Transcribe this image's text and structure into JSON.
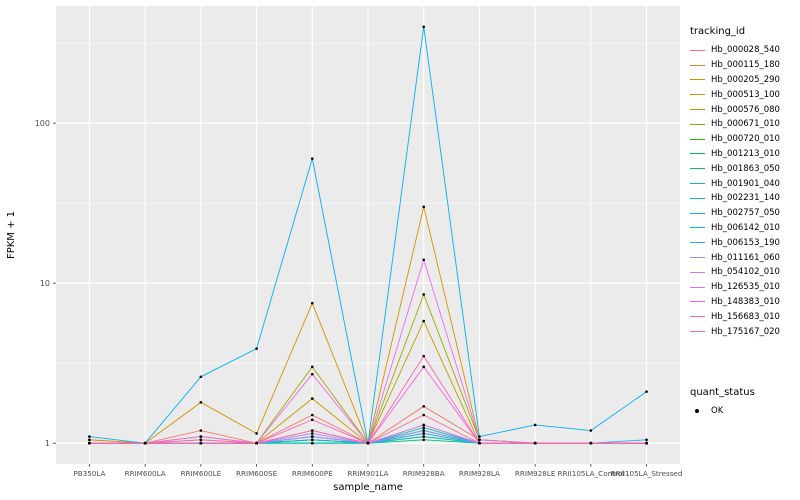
{
  "figure": {
    "background": "#FFFFFF",
    "panel_background": "#EBEBEB",
    "gridline_color": "#FFFFFF",
    "tick_color": "#333333",
    "tick_label_color": "#4D4D4D",
    "title_color": "#000000"
  },
  "axes": {
    "x": {
      "title": "sample_name"
    },
    "y": {
      "title": "FPKM + 1",
      "ticks": [
        "1",
        "10",
        "100"
      ],
      "tick_values": [
        1,
        10,
        100
      ],
      "minor_values": [
        3.162,
        31.62,
        316.2
      ],
      "scale": "log10"
    }
  },
  "legend": {
    "tracking_title": "tracking_id",
    "quant_title": "quant_status",
    "quant_items": [
      {
        "label": "OK",
        "color": "#000000"
      }
    ]
  },
  "chart_data": {
    "type": "line",
    "title": "",
    "xlabel": "sample_name",
    "ylabel": "FPKM + 1",
    "y_scale": "log10",
    "ylim_log10": [
      -0.13,
      2.732
    ],
    "grid": true,
    "legend_position": "right",
    "point_color": "#000000",
    "categories": [
      "PB350LA",
      "RRIM600LA",
      "RRIM600LE",
      "RRIM600SE",
      "RRIM600PE",
      "RRIM901LA",
      "RRIM928BA",
      "RRIM928LA",
      "RRIM928LE",
      "RRII105LA_Control",
      "RRII105LA_Stressed"
    ],
    "series": [
      {
        "name": "Hb_000028_540",
        "color": "#F8766D",
        "values": [
          1.05,
          1.0,
          1.2,
          1.0,
          1.5,
          1.0,
          1.7,
          1.05,
          1.0,
          1.0,
          1.0
        ]
      },
      {
        "name": "Hb_000115_180",
        "color": "#EA8331",
        "values": [
          1.0,
          1.0,
          1.0,
          1.0,
          1.1,
          1.0,
          1.3,
          1.0,
          1.0,
          1.0,
          1.0
        ]
      },
      {
        "name": "Hb_000205_290",
        "color": "#D89000",
        "values": [
          1.05,
          1.0,
          1.8,
          1.15,
          7.5,
          1.0,
          30,
          1.05,
          1.0,
          1.0,
          1.0
        ]
      },
      {
        "name": "Hb_000513_100",
        "color": "#C09B00",
        "values": [
          1.0,
          1.0,
          1.1,
          1.0,
          1.9,
          1.0,
          5.8,
          1.0,
          1.0,
          1.0,
          1.0
        ]
      },
      {
        "name": "Hb_000576_080",
        "color": "#A3A500",
        "values": [
          1.0,
          1.0,
          1.05,
          1.0,
          3.0,
          1.0,
          8.5,
          1.05,
          1.0,
          1.0,
          1.0
        ]
      },
      {
        "name": "Hb_000671_010",
        "color": "#7CAE00",
        "values": [
          1.0,
          1.0,
          1.0,
          1.0,
          1.05,
          1.0,
          1.2,
          1.0,
          1.0,
          1.0,
          1.0
        ]
      },
      {
        "name": "Hb_000720_010",
        "color": "#39B600",
        "values": [
          1.0,
          1.0,
          1.0,
          1.0,
          1.0,
          1.0,
          1.15,
          1.0,
          1.0,
          1.0,
          1.0
        ]
      },
      {
        "name": "Hb_001213_010",
        "color": "#00BB4E",
        "values": [
          1.0,
          1.0,
          1.0,
          1.0,
          1.05,
          1.0,
          1.1,
          1.0,
          1.0,
          1.0,
          1.0
        ]
      },
      {
        "name": "Hb_001863_050",
        "color": "#00BF7D",
        "values": [
          1.0,
          1.0,
          1.0,
          1.0,
          1.0,
          1.0,
          1.05,
          1.0,
          1.0,
          1.0,
          1.0
        ]
      },
      {
        "name": "Hb_001901_040",
        "color": "#00C1A3",
        "values": [
          1.0,
          1.0,
          1.0,
          1.0,
          1.1,
          1.0,
          1.25,
          1.0,
          1.0,
          1.0,
          1.0
        ]
      },
      {
        "name": "Hb_002231_140",
        "color": "#00BFC4",
        "values": [
          1.0,
          1.0,
          1.0,
          1.0,
          1.0,
          1.0,
          1.1,
          1.0,
          1.0,
          1.0,
          1.0
        ]
      },
      {
        "name": "Hb_002757_050",
        "color": "#00BAE0",
        "values": [
          1.0,
          1.0,
          1.0,
          1.0,
          1.05,
          1.0,
          1.2,
          1.0,
          1.0,
          1.0,
          1.0
        ]
      },
      {
        "name": "Hb_006142_010",
        "color": "#00B0F6",
        "values": [
          1.1,
          1.0,
          2.6,
          3.9,
          60,
          1.0,
          400,
          1.1,
          1.3,
          1.2,
          2.1
        ]
      },
      {
        "name": "Hb_006153_190",
        "color": "#35A2FF",
        "values": [
          1.0,
          1.0,
          1.0,
          1.0,
          1.1,
          1.0,
          1.15,
          1.0,
          1.0,
          1.0,
          1.05
        ]
      },
      {
        "name": "Hb_011161_060",
        "color": "#9590FF",
        "values": [
          1.0,
          1.0,
          1.0,
          1.0,
          1.15,
          1.0,
          1.2,
          1.0,
          1.0,
          1.0,
          1.0
        ]
      },
      {
        "name": "Hb_054102_010",
        "color": "#C77CFF",
        "values": [
          1.0,
          1.0,
          1.0,
          1.0,
          1.1,
          1.0,
          1.3,
          1.0,
          1.0,
          1.0,
          1.0
        ]
      },
      {
        "name": "Hb_126535_010",
        "color": "#E76BF3",
        "values": [
          1.0,
          1.0,
          1.1,
          1.0,
          2.7,
          1.0,
          14,
          1.05,
          1.0,
          1.0,
          1.0
        ]
      },
      {
        "name": "Hb_148383_010",
        "color": "#FA62DB",
        "values": [
          1.0,
          1.0,
          1.0,
          1.0,
          1.2,
          1.0,
          3.0,
          1.0,
          1.0,
          1.0,
          1.0
        ]
      },
      {
        "name": "Hb_156683_010",
        "color": "#FF62BC",
        "values": [
          1.0,
          1.0,
          1.05,
          1.0,
          1.4,
          1.0,
          3.5,
          1.0,
          1.0,
          1.0,
          1.0
        ]
      },
      {
        "name": "Hb_175167_020",
        "color": "#FF6A98",
        "values": [
          1.0,
          1.0,
          1.0,
          1.0,
          1.2,
          1.0,
          1.5,
          1.0,
          1.0,
          1.0,
          1.0
        ]
      }
    ]
  }
}
